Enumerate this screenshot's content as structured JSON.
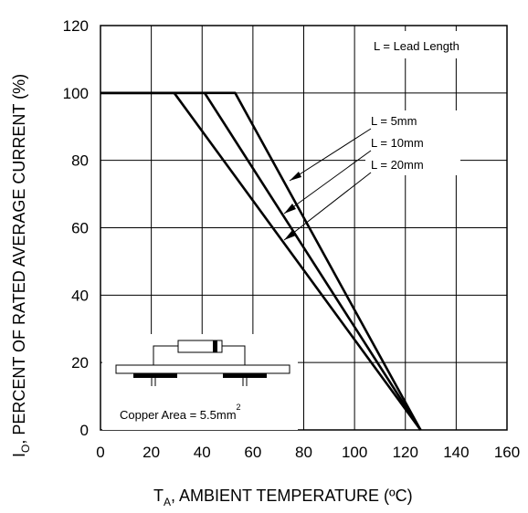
{
  "chart_data": {
    "type": "line",
    "xlabel_main": "T",
    "xlabel_sub": "A",
    "xlabel_rest": ", AMBIENT TEMPERATURE (ºC)",
    "ylabel_main": "I",
    "ylabel_sub": "O",
    "ylabel_rest": ", PERCENT OF RATED AVERAGE CURRENT (%)",
    "xlim": [
      0,
      160
    ],
    "ylim": [
      0,
      120
    ],
    "x_ticks": [
      "0",
      "20",
      "40",
      "60",
      "80",
      "100",
      "120",
      "140",
      "160"
    ],
    "y_ticks": [
      "0",
      "20",
      "40",
      "60",
      "80",
      "100",
      "120"
    ],
    "grid": true,
    "series": [
      {
        "name": "L = 5mm",
        "x": [
          0,
          53,
          126
        ],
        "y": [
          100,
          100,
          0
        ]
      },
      {
        "name": "L = 10mm",
        "x": [
          0,
          41,
          126
        ],
        "y": [
          100,
          100,
          0
        ]
      },
      {
        "name": "L = 20mm",
        "x": [
          0,
          29,
          126
        ],
        "y": [
          100,
          100,
          0
        ]
      }
    ],
    "annotations": {
      "lead_length_note": "L = Lead Length",
      "copper_area_label": "Copper Area = 5.5mm",
      "copper_area_exp": "2"
    }
  }
}
